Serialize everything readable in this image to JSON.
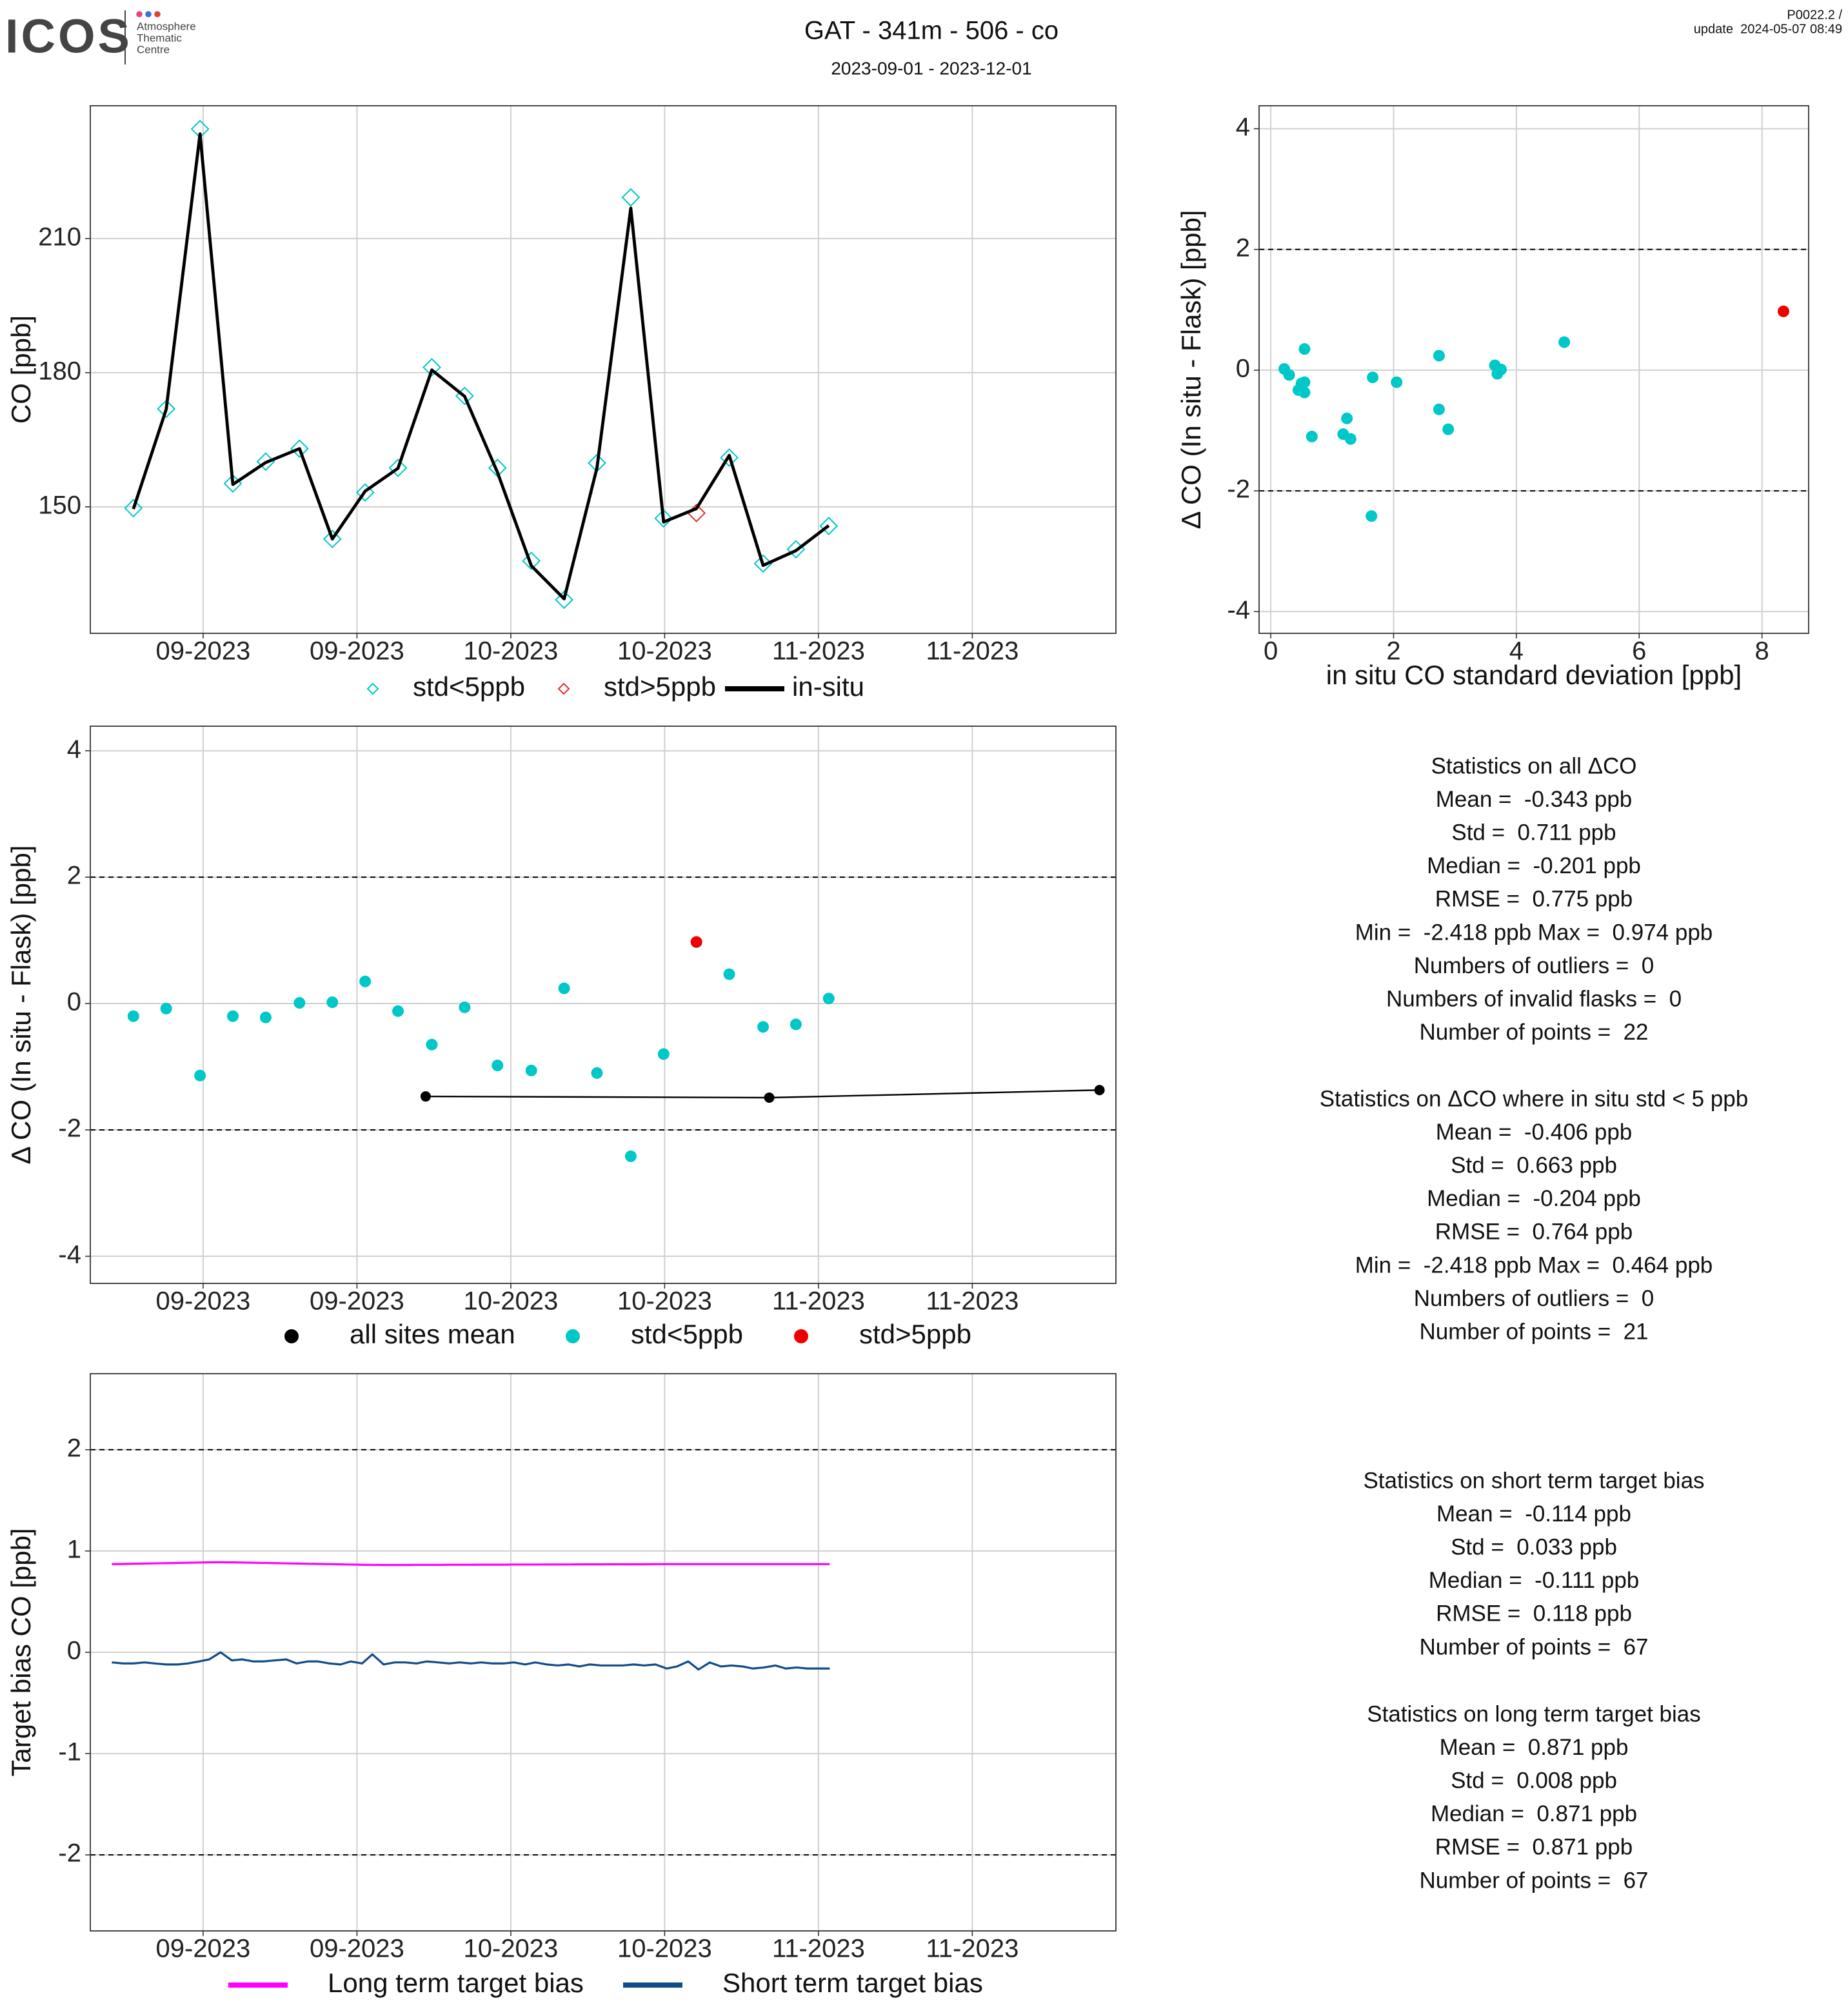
{
  "header": {
    "logo": "ICOS",
    "logo_text": [
      "Atmosphere",
      "Thematic",
      "Centre"
    ],
    "title": "GAT - 341m - 506 - co",
    "subtitle": "2023-09-01 - 2023-12-01",
    "version": "P0022.2 /",
    "update": "update  2024-05-07 08:49"
  },
  "chart_data": [
    {
      "type": "line",
      "ylabel": "CO [ppb]",
      "grid": true,
      "legend": "bottom",
      "xlim": [
        0,
        100
      ],
      "xticks": [
        {
          "value": 11,
          "label": "09-2023"
        },
        {
          "value": 26,
          "label": "09-2023"
        },
        {
          "value": 41,
          "label": "10-2023"
        },
        {
          "value": 56,
          "label": "10-2023"
        },
        {
          "value": 71,
          "label": "11-2023"
        },
        {
          "value": 86,
          "label": "11-2023"
        }
      ],
      "ylim": [
        121.7,
        239.7
      ],
      "yticks": [
        150,
        180,
        210
      ],
      "series": [
        {
          "name": "std<5ppb",
          "style": "diamond",
          "color": "#00c8c8",
          "x": [
            4.2,
            7.4,
            10.7,
            13.9,
            17.1,
            20.4,
            23.6,
            26.8,
            30.0,
            33.3,
            36.5,
            39.7,
            43.0,
            46.2,
            49.4,
            52.7,
            55.9,
            62.3,
            65.6,
            68.8,
            72.0
          ],
          "values": [
            149.7,
            171.9,
            234.5,
            155.2,
            160.1,
            163.0,
            142.8,
            153.2,
            158.7,
            181.2,
            174.8,
            158.7,
            137.9,
            129.2,
            159.8,
            219.2,
            147.4,
            161.0,
            137.3,
            140.5,
            145.7
          ]
        },
        {
          "name": "std>5ppb",
          "style": "diamond",
          "color": "#e03030",
          "x": [
            59.1
          ],
          "values": [
            148.6
          ]
        },
        {
          "name": "in-situ",
          "style": "line",
          "color": "#000000",
          "x": [
            4.2,
            7.4,
            10.7,
            13.9,
            17.1,
            20.4,
            23.6,
            26.8,
            30.0,
            33.3,
            36.5,
            39.7,
            43.0,
            46.2,
            49.4,
            52.7,
            55.9,
            59.1,
            62.3,
            65.6,
            68.8,
            72.0
          ],
          "values": [
            149.5,
            171.8,
            233.4,
            155.0,
            159.9,
            163.0,
            142.8,
            153.5,
            158.6,
            180.6,
            174.7,
            157.7,
            136.8,
            129.4,
            158.7,
            216.8,
            146.6,
            149.6,
            161.5,
            136.9,
            140.2,
            145.8
          ]
        }
      ]
    },
    {
      "type": "scatter",
      "ylabel": "Δ CO (In situ - Flask) [ppb]",
      "xlabel": "in situ CO standard deviation [ppb]",
      "grid": true,
      "xlim": [
        -0.19,
        8.76
      ],
      "xticks": [
        0,
        2,
        4,
        6,
        8
      ],
      "ylim": [
        -4.36,
        4.38
      ],
      "yticks": [
        -4,
        -2,
        0,
        2,
        4
      ],
      "hlines": [
        -2,
        2
      ],
      "series": [
        {
          "color": "#00c8c8",
          "x": [
            0.55,
            0.3,
            1.3,
            2.05,
            0.5,
            3.75,
            0.22,
            0.55,
            1.66,
            2.74,
            3.69,
            2.89,
            1.18,
            2.74,
            0.67,
            1.64,
            1.24,
            4.78,
            0.55,
            0.45,
            3.65
          ],
          "values": [
            -0.2,
            -0.08,
            -1.14,
            -0.2,
            -0.22,
            0.01,
            0.02,
            0.35,
            -0.12,
            -0.65,
            -0.06,
            -0.98,
            -1.06,
            0.24,
            -1.1,
            -2.418,
            -0.8,
            0.464,
            -0.37,
            -0.33,
            0.08
          ]
        },
        {
          "color": "#ee0000",
          "x": [
            8.35
          ],
          "values": [
            0.974
          ]
        }
      ]
    },
    {
      "type": "line",
      "ylabel": "Δ CO (In situ - Flask) [ppb]",
      "grid": true,
      "legend": "bottom",
      "xlim": [
        0,
        100
      ],
      "xticks": [
        {
          "value": 11,
          "label": "09-2023"
        },
        {
          "value": 26,
          "label": "09-2023"
        },
        {
          "value": 41,
          "label": "10-2023"
        },
        {
          "value": 56,
          "label": "10-2023"
        },
        {
          "value": 71,
          "label": "11-2023"
        },
        {
          "value": 86,
          "label": "11-2023"
        }
      ],
      "ylim": [
        -4.43,
        4.39
      ],
      "yticks": [
        -4,
        -2,
        0,
        2,
        4
      ],
      "hlines": [
        -2,
        2
      ],
      "series": [
        {
          "name": "all sites mean",
          "style": "line-dot",
          "color": "#000000",
          "x": [
            32.7,
            66.2,
            98.4
          ],
          "values": [
            -1.47,
            -1.49,
            -1.37
          ]
        },
        {
          "name": "std<5ppb",
          "style": "dot",
          "color": "#00c8c8",
          "x": [
            4.2,
            7.4,
            10.7,
            13.9,
            17.1,
            20.4,
            23.6,
            26.8,
            30.0,
            33.3,
            36.5,
            39.7,
            43.0,
            46.2,
            49.4,
            52.7,
            55.9,
            62.3,
            65.6,
            68.8,
            72.0
          ],
          "values": [
            -0.2,
            -0.08,
            -1.14,
            -0.2,
            -0.22,
            0.01,
            0.02,
            0.35,
            -0.12,
            -0.65,
            -0.06,
            -0.98,
            -1.06,
            0.24,
            -1.1,
            -2.418,
            -0.8,
            0.464,
            -0.37,
            -0.33,
            0.08
          ]
        },
        {
          "name": "std>5ppb",
          "style": "dot",
          "color": "#ee0000",
          "x": [
            59.1
          ],
          "values": [
            0.974
          ]
        }
      ]
    },
    {
      "type": "line",
      "ylabel": "Target bias CO [ppb]",
      "grid": true,
      "legend": "bottom",
      "xlim": [
        0,
        100
      ],
      "xticks": [
        {
          "value": 11,
          "label": "09-2023"
        },
        {
          "value": 26,
          "label": "09-2023"
        },
        {
          "value": 41,
          "label": "10-2023"
        },
        {
          "value": 56,
          "label": "10-2023"
        },
        {
          "value": 71,
          "label": "11-2023"
        },
        {
          "value": 86,
          "label": "11-2023"
        }
      ],
      "ylim": [
        -2.75,
        2.75
      ],
      "yticks": [
        -2,
        -1,
        0,
        1,
        2
      ],
      "hlines": [
        -2,
        2
      ],
      "series": [
        {
          "name": "Long term target bias",
          "style": "line",
          "color": "#ff00ff",
          "x": [
            2.1,
            3.2,
            4.2,
            5.3,
            6.3,
            7.4,
            8.5,
            9.5,
            10.6,
            11.6,
            12.7,
            13.8,
            14.8,
            15.9,
            16.9,
            18.0,
            19.1,
            20.1,
            21.2,
            22.2,
            23.3,
            24.4,
            25.4,
            26.5,
            27.5,
            28.6,
            29.7,
            30.7,
            31.8,
            32.8,
            33.9,
            35.0,
            36.0,
            37.1,
            38.1,
            39.2,
            40.3,
            41.3,
            42.4,
            43.4,
            44.5,
            45.6,
            46.6,
            47.7,
            48.7,
            49.8,
            50.9,
            51.9,
            53.0,
            54.0,
            55.1,
            56.2,
            57.2,
            58.3,
            59.3,
            60.4,
            61.5,
            62.5,
            63.6,
            64.6,
            65.7,
            66.8,
            67.8,
            68.9,
            69.9,
            71.0,
            72.1
          ],
          "values": [
            0.87,
            0.872,
            0.874,
            0.876,
            0.878,
            0.88,
            0.882,
            0.884,
            0.886,
            0.888,
            0.889,
            0.888,
            0.886,
            0.884,
            0.882,
            0.88,
            0.878,
            0.876,
            0.874,
            0.872,
            0.87,
            0.868,
            0.866,
            0.864,
            0.863,
            0.862,
            0.862,
            0.862,
            0.863,
            0.863,
            0.863,
            0.864,
            0.864,
            0.864,
            0.865,
            0.865,
            0.865,
            0.866,
            0.866,
            0.866,
            0.867,
            0.867,
            0.867,
            0.868,
            0.868,
            0.868,
            0.869,
            0.869,
            0.869,
            0.869,
            0.87,
            0.87,
            0.87,
            0.87,
            0.87,
            0.87,
            0.87,
            0.87,
            0.87,
            0.87,
            0.87,
            0.87,
            0.87,
            0.87,
            0.87,
            0.87,
            0.87
          ]
        },
        {
          "name": "Short term target bias",
          "style": "line",
          "color": "#0f4c8a",
          "x": [
            2.1,
            3.2,
            4.2,
            5.3,
            6.3,
            7.4,
            8.5,
            9.5,
            10.6,
            11.6,
            12.7,
            13.8,
            14.8,
            15.9,
            16.9,
            18.0,
            19.1,
            20.1,
            21.2,
            22.2,
            23.3,
            24.4,
            25.4,
            26.5,
            27.5,
            28.6,
            29.7,
            30.7,
            31.8,
            32.8,
            33.9,
            35.0,
            36.0,
            37.1,
            38.1,
            39.2,
            40.3,
            41.3,
            42.4,
            43.4,
            44.5,
            45.6,
            46.6,
            47.7,
            48.7,
            49.8,
            50.9,
            51.9,
            53.0,
            54.0,
            55.1,
            56.2,
            57.2,
            58.3,
            59.3,
            60.4,
            61.5,
            62.5,
            63.6,
            64.6,
            65.7,
            66.8,
            67.8,
            68.9,
            69.9,
            71.0,
            72.1
          ],
          "values": [
            -0.1,
            -0.11,
            -0.11,
            -0.1,
            -0.11,
            -0.12,
            -0.12,
            -0.11,
            -0.09,
            -0.07,
            0.0,
            -0.08,
            -0.07,
            -0.09,
            -0.09,
            -0.08,
            -0.07,
            -0.11,
            -0.09,
            -0.09,
            -0.11,
            -0.12,
            -0.09,
            -0.11,
            -0.02,
            -0.12,
            -0.1,
            -0.1,
            -0.11,
            -0.09,
            -0.1,
            -0.11,
            -0.1,
            -0.11,
            -0.1,
            -0.11,
            -0.11,
            -0.1,
            -0.12,
            -0.1,
            -0.12,
            -0.13,
            -0.12,
            -0.14,
            -0.12,
            -0.13,
            -0.13,
            -0.13,
            -0.12,
            -0.13,
            -0.12,
            -0.16,
            -0.14,
            -0.09,
            -0.17,
            -0.1,
            -0.14,
            -0.13,
            -0.14,
            -0.16,
            -0.15,
            -0.13,
            -0.16,
            -0.15,
            -0.16,
            -0.16,
            -0.16
          ]
        }
      ]
    }
  ],
  "stats": [
    {
      "lines": [
        "Statistics on all ΔCO",
        "Mean =  -0.343 ppb",
        "Std =  0.711 ppb",
        "Median =  -0.201 ppb",
        "RMSE =  0.775 ppb",
        "Min =  -2.418 ppb Max =  0.974 ppb",
        "Numbers of outliers =  0",
        "Numbers of invalid flasks =  0",
        "Number of points =  22"
      ]
    },
    {
      "lines": [
        "Statistics on ΔCO where in situ std < 5 ppb",
        "Mean =  -0.406 ppb",
        "Std =  0.663 ppb",
        "Median =  -0.204 ppb",
        "RMSE =  0.764 ppb",
        "Min =  -2.418 ppb Max =  0.464 ppb",
        "Numbers of outliers =  0",
        "Number of points =  21"
      ]
    },
    {
      "lines": [
        "Statistics on short term target bias",
        "Mean =  -0.114 ppb",
        "Std =  0.033 ppb",
        "Median =  -0.111 ppb",
        "RMSE =  0.118 ppb",
        "Number of points =  67"
      ]
    },
    {
      "lines": [
        "Statistics on long term target bias",
        "Mean =  0.871 ppb",
        "Std =  0.008 ppb",
        "Median =  0.871 ppb",
        "RMSE =  0.871 ppb",
        "Number of points =  67"
      ]
    }
  ]
}
